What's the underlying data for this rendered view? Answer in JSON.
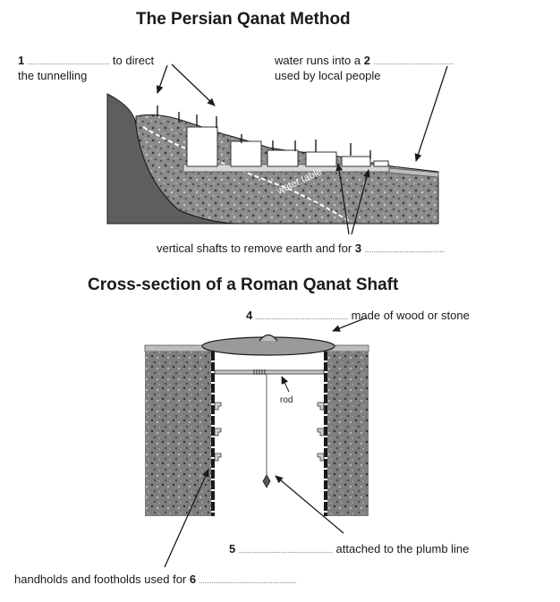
{
  "titles": {
    "persian": "The Persian Qanat Method",
    "roman": "Cross-section of a Roman Qanat Shaft"
  },
  "labels": {
    "q1_num": "1",
    "q1_dots": "...............................................",
    "q1_text_a": "to direct",
    "q1_text_b": "the tunnelling",
    "q2_text": "water runs into a",
    "q2_num": "2",
    "q2_dots": "..............................................",
    "q2_text_b": "used by local people",
    "water_table": "water table",
    "q3_text": "vertical shafts to remove earth and for",
    "q3_num": "3",
    "q3_dots": "..............................................",
    "q4_num": "4",
    "q4_dots": ".....................................................",
    "q4_text": "made of wood or stone",
    "rod": "rod",
    "q5_num": "5",
    "q5_dots": "......................................................",
    "q5_text": "attached to the plumb line",
    "q6_text": "handholds and footholds used for",
    "q6_num": "6",
    "q6_dots": "........................................................"
  },
  "colors": {
    "rock": "#8a8a8a",
    "rock_dark": "#4a4a4a",
    "ink": "#1a1a1a",
    "background": "#ffffff"
  }
}
